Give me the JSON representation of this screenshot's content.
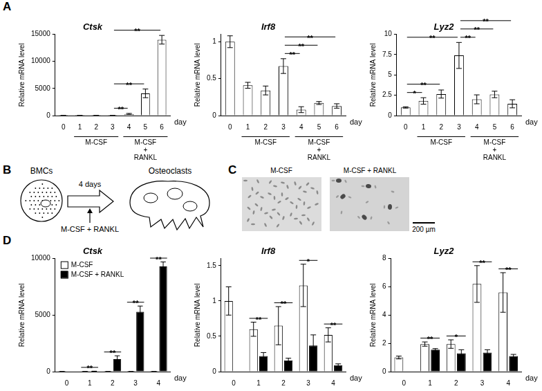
{
  "panel_labels": [
    "A",
    "B",
    "C",
    "D"
  ],
  "chart_data": [
    {
      "type": "bar",
      "title": "Ctsk",
      "ylabel": "Relative mRNA level",
      "xlabel": "day",
      "categories": [
        "0",
        "1",
        "2",
        "3",
        "4",
        "5",
        "6"
      ],
      "values": [
        1,
        1,
        1,
        2,
        300,
        4100,
        14000
      ],
      "errors": [
        0.1,
        0.2,
        0.2,
        0.3,
        100,
        800,
        800
      ],
      "color": "#ffffff",
      "ylim": [
        0,
        15000
      ],
      "yticks": [
        0,
        5000,
        10000,
        15000
      ],
      "groups": [
        {
          "label": "M-CSF",
          "categories": [
            "1",
            "2",
            "3"
          ]
        },
        {
          "label": "M-CSF + RANKL",
          "categories": [
            "4",
            "5",
            "6"
          ]
        }
      ],
      "significance": [
        {
          "pair": [
            "3",
            "4"
          ],
          "label": "**"
        },
        {
          "pair": [
            "3",
            "5"
          ],
          "label": "**"
        },
        {
          "pair": [
            "3",
            "6"
          ],
          "label": "**"
        }
      ]
    },
    {
      "type": "bar",
      "title": "Irf8",
      "ylabel": "Relative mRNA level",
      "xlabel": "day",
      "categories": [
        "0",
        "1",
        "2",
        "3",
        "4",
        "5",
        "6"
      ],
      "values": [
        1.0,
        0.41,
        0.34,
        0.67,
        0.08,
        0.17,
        0.13
      ],
      "errors": [
        0.08,
        0.04,
        0.06,
        0.1,
        0.04,
        0.02,
        0.03
      ],
      "color": "#ffffff",
      "ylim": [
        0,
        1.1
      ],
      "yticks": [
        0,
        0.5,
        1
      ],
      "groups": [
        {
          "label": "M-CSF",
          "categories": [
            "1",
            "2",
            "3"
          ]
        },
        {
          "label": "M-CSF + RANKL",
          "categories": [
            "4",
            "5",
            "6"
          ]
        }
      ],
      "significance": [
        {
          "pair": [
            "3",
            "4"
          ],
          "label": "**"
        },
        {
          "pair": [
            "3",
            "5"
          ],
          "label": "**"
        },
        {
          "pair": [
            "3",
            "6"
          ],
          "label": "**"
        }
      ]
    },
    {
      "type": "bar",
      "title": "Lyz2",
      "ylabel": "Relative mRNA level",
      "xlabel": "day",
      "categories": [
        "0",
        "1",
        "2",
        "3",
        "4",
        "5",
        "6"
      ],
      "values": [
        1.0,
        1.8,
        2.65,
        7.4,
        2.0,
        2.6,
        1.45
      ],
      "errors": [
        0.08,
        0.4,
        0.5,
        1.6,
        0.55,
        0.4,
        0.5
      ],
      "color": "#ffffff",
      "ylim": [
        0,
        10
      ],
      "yticks": [
        0,
        2.5,
        5,
        7.5,
        10
      ],
      "groups": [
        {
          "label": "M-CSF",
          "categories": [
            "1",
            "2",
            "3"
          ]
        },
        {
          "label": "M-CSF + RANKL",
          "categories": [
            "4",
            "5",
            "6"
          ]
        }
      ],
      "significance": [
        {
          "pair": [
            "0",
            "1"
          ],
          "label": "*"
        },
        {
          "pair": [
            "0",
            "2"
          ],
          "label": "**"
        },
        {
          "pair": [
            "0",
            "3"
          ],
          "label": "**"
        },
        {
          "pair": [
            "3",
            "4"
          ],
          "label": "**"
        },
        {
          "pair": [
            "3",
            "5"
          ],
          "label": "**"
        },
        {
          "pair": [
            "3",
            "6"
          ],
          "label": "**"
        }
      ]
    },
    {
      "type": "bar",
      "title": "Ctsk",
      "ylabel": "Relative mRNA level",
      "xlabel": "day",
      "categories": [
        "0",
        "1",
        "2",
        "3",
        "4"
      ],
      "series": [
        {
          "name": "M-CSF",
          "color": "#ffffff",
          "values": [
            1,
            1,
            1,
            1,
            1
          ],
          "errors": [
            0.2,
            0.2,
            0.2,
            0.2,
            0.2
          ]
        },
        {
          "name": "M-CSF + RANKL",
          "color": "#000000",
          "values": [
            null,
            30,
            1100,
            5300,
            9300
          ],
          "errors": [
            null,
            10,
            300,
            500,
            400
          ]
        }
      ],
      "legend": "upper left",
      "ylim": [
        0,
        10000
      ],
      "yticks": [
        0,
        5000,
        10000
      ],
      "significance": [
        {
          "category": "1",
          "label": "**"
        },
        {
          "category": "2",
          "label": "**"
        },
        {
          "category": "3",
          "label": "**"
        },
        {
          "category": "4",
          "label": "**"
        }
      ]
    },
    {
      "type": "bar",
      "title": "Irf8",
      "ylabel": "Relative mRNA level",
      "xlabel": "day",
      "categories": [
        "0",
        "1",
        "2",
        "3",
        "4"
      ],
      "series": [
        {
          "color": "#ffffff",
          "values": [
            1.0,
            0.6,
            0.65,
            1.22,
            0.52
          ],
          "errors": [
            0.2,
            0.1,
            0.27,
            0.3,
            0.1
          ]
        },
        {
          "color": "#000000",
          "values": [
            null,
            0.22,
            0.16,
            0.37,
            0.09
          ],
          "errors": [
            null,
            0.05,
            0.03,
            0.15,
            0.02
          ]
        }
      ],
      "ylim": [
        0,
        1.6
      ],
      "yticks": [
        0,
        0.5,
        1,
        1.5
      ],
      "significance": [
        {
          "category": "1",
          "label": "**"
        },
        {
          "category": "2",
          "label": "**"
        },
        {
          "category": "3",
          "label": "*"
        },
        {
          "category": "4",
          "label": "**"
        }
      ]
    },
    {
      "type": "bar",
      "title": "Lyz2",
      "ylabel": "Relative mRNA level",
      "xlabel": "day",
      "categories": [
        "0",
        "1",
        "2",
        "3",
        "4"
      ],
      "series": [
        {
          "color": "#ffffff",
          "values": [
            1.0,
            1.95,
            1.95,
            6.2,
            5.6
          ],
          "errors": [
            0.1,
            0.15,
            0.3,
            1.3,
            1.4
          ]
        },
        {
          "color": "#000000",
          "values": [
            null,
            1.55,
            1.3,
            1.35,
            1.1
          ],
          "errors": [
            null,
            0.08,
            0.25,
            0.2,
            0.12
          ]
        }
      ],
      "ylim": [
        0,
        8
      ],
      "yticks": [
        0,
        2,
        4,
        6,
        8
      ],
      "significance": [
        {
          "category": "1",
          "label": "**"
        },
        {
          "category": "2",
          "label": "*"
        },
        {
          "category": "3",
          "label": "**"
        },
        {
          "category": "4",
          "label": "**"
        }
      ]
    }
  ],
  "diagram": {
    "source": "BMCs",
    "target": "Osteoclasts",
    "duration": "4 days",
    "treatment": "M-CSF + RANKL"
  },
  "micrographs": {
    "images": [
      {
        "label": "M-CSF"
      },
      {
        "label": "M-CSF + RANKL"
      }
    ],
    "scale_bar": "200 µm"
  }
}
